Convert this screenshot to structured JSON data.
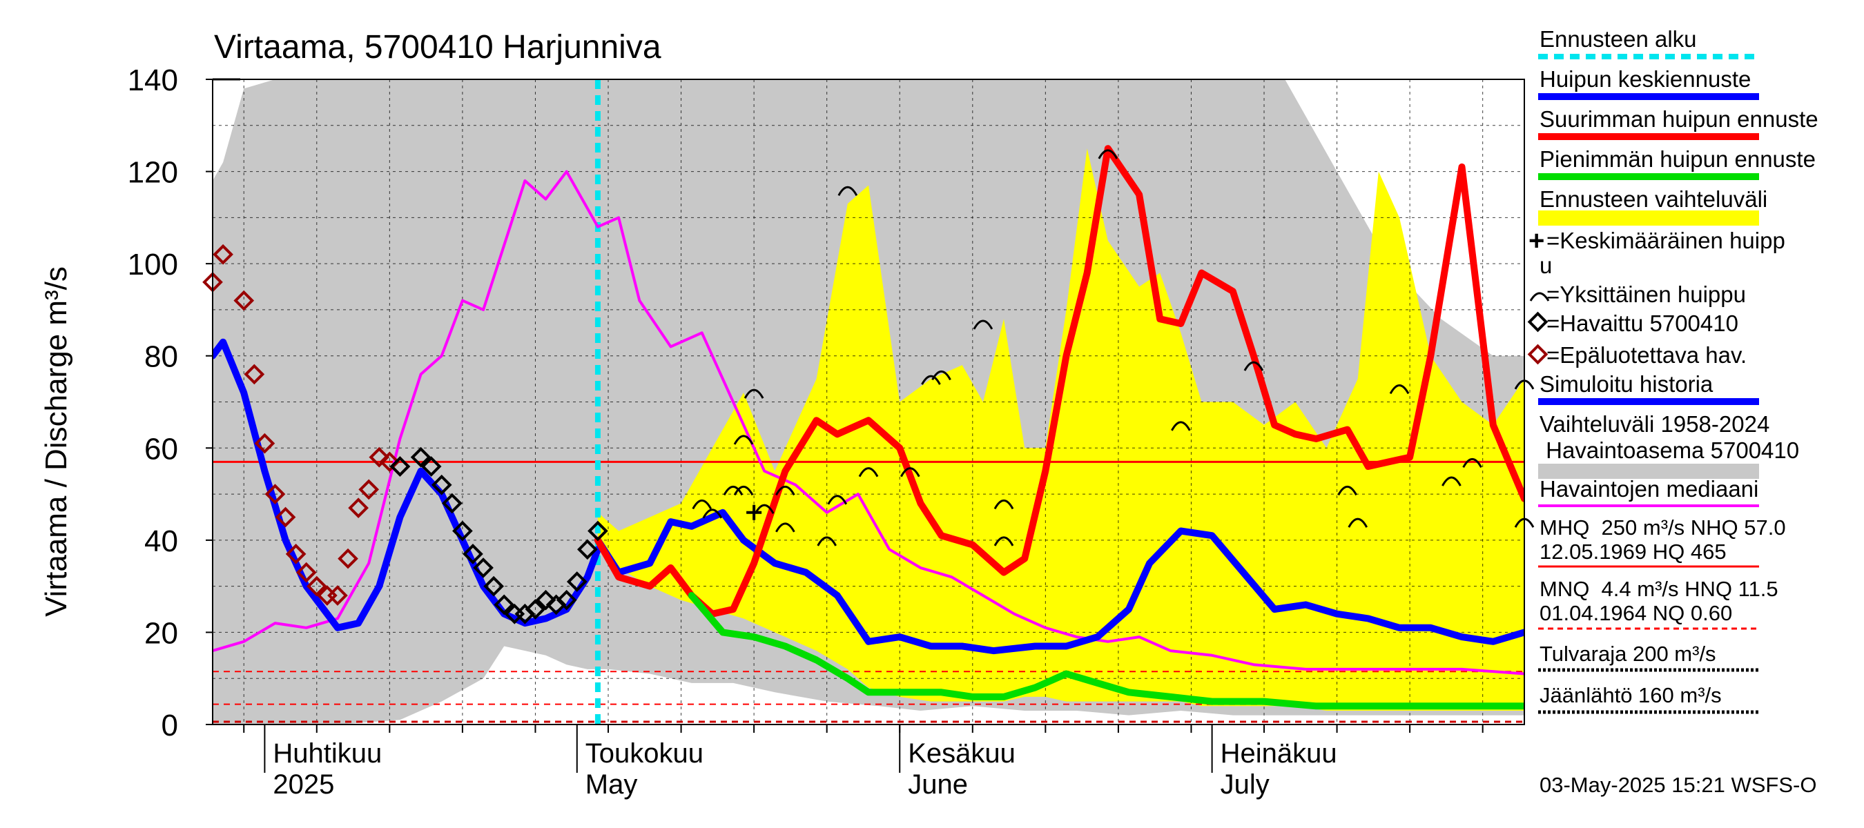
{
  "chart_data": {
    "type": "line",
    "title": "Virtaama, 5700410 Harjunniva",
    "ylabel": "Virtaama / Discharge   m³/s",
    "ylim": [
      0,
      140
    ],
    "yticks": [
      "0",
      "20",
      "40",
      "60",
      "80",
      "100",
      "120",
      "140"
    ],
    "xlim": [
      "2025-03-27",
      "2025-07-31"
    ],
    "grid": true,
    "x_month_labels": [
      {
        "fi": "Huhtikuu",
        "en": "2025",
        "date": "2025-04-01"
      },
      {
        "fi": "Toukokuu",
        "en": "May",
        "date": "2025-05-01"
      },
      {
        "fi": "Kesäkuu",
        "en": "June",
        "date": "2025-06-01"
      },
      {
        "fi": "Heinäkuu",
        "en": "July",
        "date": "2025-07-01"
      }
    ],
    "forecast_start": "2025-05-03",
    "reference_lines": {
      "hnq": 57.0,
      "mnq": 4.4,
      "hnq_low": 11.5,
      "nq": 0.6
    },
    "series": [
      {
        "name": "Vaihteluväli 1958-2024",
        "kind": "band",
        "color": "#c8c8c8",
        "x": [
          "2025-03-27",
          "2025-03-28",
          "2025-03-30",
          "2025-04-02",
          "2025-04-08",
          "2025-04-14",
          "2025-04-18",
          "2025-04-22",
          "2025-04-24",
          "2025-04-26",
          "2025-04-28",
          "2025-04-30",
          "2025-05-02",
          "2025-05-04",
          "2025-05-08",
          "2025-05-12",
          "2025-05-16",
          "2025-05-20",
          "2025-05-25",
          "2025-05-30",
          "2025-06-03",
          "2025-06-08",
          "2025-06-13",
          "2025-06-18",
          "2025-06-23",
          "2025-06-28",
          "2025-07-03",
          "2025-07-08",
          "2025-07-13",
          "2025-07-18",
          "2025-07-23",
          "2025-07-28",
          "2025-07-31"
        ],
        "low": [
          0,
          0,
          0,
          0,
          0,
          1,
          5,
          10,
          17,
          16,
          15,
          13,
          12,
          12,
          11,
          9,
          9,
          7,
          5,
          4,
          3,
          4,
          3,
          3,
          2,
          3,
          2,
          2,
          2,
          2,
          2,
          2,
          2
        ],
        "high": [
          118,
          122,
          138,
          140,
          140,
          140,
          140,
          140,
          140,
          140,
          140,
          140,
          140,
          140,
          140,
          140,
          140,
          140,
          140,
          140,
          140,
          140,
          140,
          140,
          140,
          140,
          140,
          140,
          120,
          100,
          88,
          80,
          80
        ]
      },
      {
        "name": "Ennusteen vaihteluväli",
        "kind": "band",
        "color": "#ffff00",
        "x": [
          "2025-05-03",
          "2025-05-05",
          "2025-05-08",
          "2025-05-11",
          "2025-05-14",
          "2025-05-17",
          "2025-05-20",
          "2025-05-24",
          "2025-05-27",
          "2025-05-29",
          "2025-06-01",
          "2025-06-04",
          "2025-06-07",
          "2025-06-09",
          "2025-06-11",
          "2025-06-13",
          "2025-06-15",
          "2025-06-17",
          "2025-06-19",
          "2025-06-21",
          "2025-06-24",
          "2025-06-26",
          "2025-06-28",
          "2025-06-30",
          "2025-07-03",
          "2025-07-06",
          "2025-07-09",
          "2025-07-12",
          "2025-07-15",
          "2025-07-17",
          "2025-07-19",
          "2025-07-22",
          "2025-07-25",
          "2025-07-28",
          "2025-07-31"
        ],
        "low": [
          38,
          34,
          30,
          27,
          25,
          23,
          20,
          16,
          12,
          8,
          6,
          5,
          5,
          5,
          5,
          6,
          6,
          5,
          5,
          5,
          5,
          5,
          5,
          4,
          4,
          4,
          4,
          3,
          3,
          3,
          3,
          3,
          3,
          3,
          3
        ],
        "high": [
          46,
          42,
          45,
          48,
          60,
          72,
          55,
          75,
          113,
          117,
          70,
          75,
          78,
          70,
          88,
          60,
          60,
          90,
          125,
          105,
          95,
          98,
          85,
          70,
          70,
          65,
          70,
          60,
          75,
          120,
          110,
          80,
          70,
          65,
          75
        ]
      },
      {
        "name": "Simuloitu historia",
        "kind": "line",
        "color": "#0000ff",
        "x": [
          "2025-03-27",
          "2025-03-28",
          "2025-03-30",
          "2025-04-01",
          "2025-04-03",
          "2025-04-05",
          "2025-04-08",
          "2025-04-10",
          "2025-04-12",
          "2025-04-14",
          "2025-04-16",
          "2025-04-18",
          "2025-04-20",
          "2025-04-22",
          "2025-04-24",
          "2025-04-26",
          "2025-04-28",
          "2025-04-30",
          "2025-05-02",
          "2025-05-03"
        ],
        "values": [
          80,
          83,
          72,
          55,
          40,
          30,
          21,
          22,
          30,
          45,
          55,
          50,
          40,
          30,
          24,
          22,
          23,
          25,
          32,
          38
        ]
      },
      {
        "name": "Huipun keskiennuste",
        "kind": "line",
        "color": "#0000ff",
        "x": [
          "2025-05-03",
          "2025-05-05",
          "2025-05-08",
          "2025-05-10",
          "2025-05-12",
          "2025-05-15",
          "2025-05-17",
          "2025-05-20",
          "2025-05-23",
          "2025-05-26",
          "2025-05-29",
          "2025-06-01",
          "2025-06-04",
          "2025-06-07",
          "2025-06-10",
          "2025-06-14",
          "2025-06-17",
          "2025-06-20",
          "2025-06-23",
          "2025-06-25",
          "2025-06-28",
          "2025-07-01",
          "2025-07-04",
          "2025-07-07",
          "2025-07-10",
          "2025-07-13",
          "2025-07-16",
          "2025-07-19",
          "2025-07-22",
          "2025-07-25",
          "2025-07-28",
          "2025-07-31"
        ],
        "values": [
          40,
          33,
          35,
          44,
          43,
          46,
          40,
          35,
          33,
          28,
          18,
          19,
          17,
          17,
          16,
          17,
          17,
          19,
          25,
          35,
          42,
          41,
          33,
          25,
          26,
          24,
          23,
          21,
          21,
          19,
          18,
          20
        ]
      },
      {
        "name": "Suurimman huipun ennuste",
        "kind": "line",
        "color": "#ff0000",
        "x": [
          "2025-05-03",
          "2025-05-05",
          "2025-05-08",
          "2025-05-10",
          "2025-05-12",
          "2025-05-14",
          "2025-05-16",
          "2025-05-18",
          "2025-05-21",
          "2025-05-24",
          "2025-05-26",
          "2025-05-29",
          "2025-06-01",
          "2025-06-03",
          "2025-06-05",
          "2025-06-08",
          "2025-06-11",
          "2025-06-13",
          "2025-06-15",
          "2025-06-17",
          "2025-06-19",
          "2025-06-21",
          "2025-06-24",
          "2025-06-26",
          "2025-06-28",
          "2025-06-30",
          "2025-07-03",
          "2025-07-05",
          "2025-07-07",
          "2025-07-09",
          "2025-07-11",
          "2025-07-14",
          "2025-07-16",
          "2025-07-18",
          "2025-07-20",
          "2025-07-22",
          "2025-07-25",
          "2025-07-28",
          "2025-07-31"
        ],
        "values": [
          40,
          32,
          30,
          34,
          28,
          24,
          25,
          35,
          55,
          66,
          63,
          66,
          60,
          48,
          41,
          39,
          33,
          36,
          55,
          80,
          98,
          125,
          115,
          88,
          87,
          98,
          94,
          80,
          65,
          63,
          62,
          64,
          56,
          57,
          58,
          80,
          121,
          65,
          49
        ]
      },
      {
        "name": "Pienimmän huipun ennuste",
        "kind": "line",
        "color": "#00dd00",
        "x": [
          "2025-05-12",
          "2025-05-15",
          "2025-05-18",
          "2025-05-21",
          "2025-05-24",
          "2025-05-27",
          "2025-05-29",
          "2025-06-01",
          "2025-06-05",
          "2025-06-08",
          "2025-06-11",
          "2025-06-14",
          "2025-06-17",
          "2025-06-20",
          "2025-06-23",
          "2025-06-27",
          "2025-07-01",
          "2025-07-06",
          "2025-07-11",
          "2025-07-16",
          "2025-07-21",
          "2025-07-26",
          "2025-07-31"
        ],
        "values": [
          28,
          20,
          19,
          17,
          14,
          10,
          7,
          7,
          7,
          6,
          6,
          8,
          11,
          9,
          7,
          6,
          5,
          5,
          4,
          4,
          4,
          4,
          4
        ]
      },
      {
        "name": "Havaintojen mediaani",
        "kind": "line",
        "color": "#ff00ff",
        "x": [
          "2025-03-27",
          "2025-03-30",
          "2025-04-02",
          "2025-04-05",
          "2025-04-08",
          "2025-04-11",
          "2025-04-14",
          "2025-04-16",
          "2025-04-18",
          "2025-04-20",
          "2025-04-22",
          "2025-04-24",
          "2025-04-26",
          "2025-04-28",
          "2025-04-30",
          "2025-05-02",
          "2025-05-03",
          "2025-05-05",
          "2025-05-07",
          "2025-05-10",
          "2025-05-13",
          "2025-05-16",
          "2025-05-19",
          "2025-05-22",
          "2025-05-25",
          "2025-05-28",
          "2025-05-31",
          "2025-06-03",
          "2025-06-06",
          "2025-06-09",
          "2025-06-12",
          "2025-06-15",
          "2025-06-18",
          "2025-06-21",
          "2025-06-24",
          "2025-06-27",
          "2025-07-01",
          "2025-07-05",
          "2025-07-10",
          "2025-07-15",
          "2025-07-20",
          "2025-07-25",
          "2025-07-31"
        ],
        "values": [
          16,
          18,
          22,
          21,
          23,
          35,
          62,
          76,
          80,
          92,
          90,
          104,
          118,
          114,
          120,
          112,
          108,
          110,
          92,
          82,
          85,
          70,
          55,
          52,
          46,
          50,
          38,
          34,
          32,
          28,
          24,
          21,
          19,
          18,
          19,
          16,
          15,
          13,
          12,
          12,
          12,
          12,
          11
        ]
      }
    ],
    "observations": {
      "name": "Havaittu 5700410",
      "x": [
        "2025-04-14",
        "2025-04-16",
        "2025-04-17",
        "2025-04-18",
        "2025-04-19",
        "2025-04-20",
        "2025-04-21",
        "2025-04-22",
        "2025-04-23",
        "2025-04-24",
        "2025-04-25",
        "2025-04-26",
        "2025-04-27",
        "2025-04-28",
        "2025-04-29",
        "2025-04-30",
        "2025-05-01",
        "2025-05-02",
        "2025-05-03"
      ],
      "values": [
        56,
        58,
        56,
        52,
        48,
        42,
        37,
        34,
        30,
        26,
        24,
        24,
        25,
        27,
        26,
        27,
        31,
        38,
        42
      ]
    },
    "unreliable_observations": {
      "name": "Epäluotettava hav.",
      "x": [
        "2025-03-27",
        "2025-03-28",
        "2025-03-30",
        "2025-03-31",
        "2025-04-01",
        "2025-04-02",
        "2025-04-03",
        "2025-04-04",
        "2025-04-05",
        "2025-04-06",
        "2025-04-07",
        "2025-04-08",
        "2025-04-09",
        "2025-04-10",
        "2025-04-11",
        "2025-04-12",
        "2025-04-13",
        "2025-04-14"
      ],
      "values": [
        96,
        102,
        92,
        76,
        61,
        50,
        45,
        37,
        33,
        30,
        28,
        28,
        36,
        47,
        51,
        58,
        57,
        56
      ]
    },
    "individual_peaks": [
      {
        "x": "2025-05-13",
        "y": 48
      },
      {
        "x": "2025-05-14",
        "y": 46
      },
      {
        "x": "2025-05-16",
        "y": 51
      },
      {
        "x": "2025-05-17",
        "y": 51
      },
      {
        "x": "2025-05-17",
        "y": 62
      },
      {
        "x": "2025-05-18",
        "y": 72
      },
      {
        "x": "2025-05-19",
        "y": 47
      },
      {
        "x": "2025-05-21",
        "y": 43
      },
      {
        "x": "2025-05-21",
        "y": 51
      },
      {
        "x": "2025-05-25",
        "y": 40
      },
      {
        "x": "2025-05-26",
        "y": 49
      },
      {
        "x": "2025-05-27",
        "y": 116
      },
      {
        "x": "2025-05-29",
        "y": 55
      },
      {
        "x": "2025-06-02",
        "y": 55
      },
      {
        "x": "2025-06-04",
        "y": 75
      },
      {
        "x": "2025-06-05",
        "y": 76
      },
      {
        "x": "2025-06-09",
        "y": 87
      },
      {
        "x": "2025-06-11",
        "y": 48
      },
      {
        "x": "2025-06-11",
        "y": 40
      },
      {
        "x": "2025-06-21",
        "y": 124
      },
      {
        "x": "2025-06-28",
        "y": 65
      },
      {
        "x": "2025-07-05",
        "y": 78
      },
      {
        "x": "2025-07-14",
        "y": 51
      },
      {
        "x": "2025-07-15",
        "y": 44
      },
      {
        "x": "2025-07-19",
        "y": 73
      },
      {
        "x": "2025-07-24",
        "y": 53
      },
      {
        "x": "2025-07-26",
        "y": 57
      },
      {
        "x": "2025-07-31",
        "y": 74
      },
      {
        "x": "2025-07-31",
        "y": 44
      }
    ],
    "mean_peak": {
      "x": "2025-05-18",
      "y": 46
    }
  },
  "legend": {
    "forecast_start": "Ennusteen alku",
    "mean_forecast": "Huipun keskiennuste",
    "max_forecast": "Suurimman huipun ennuste",
    "min_forecast": "Pienimmän huipun ennuste",
    "forecast_range": "Ennusteen vaihteluväli",
    "mean_peak_1": "=Keskimääräinen huipp",
    "mean_peak_2": "u",
    "single_peak": "=Yksittäinen huippu",
    "observed": "=Havaittu 5700410",
    "unreliable": "=Epäluotettava hav.",
    "simulated": "Simuloitu historia",
    "hist_range_1": "Vaihteluväli 1958-2024",
    "hist_range_2": " Havaintoasema 5700410",
    "median": "Havaintojen mediaani",
    "mhq_1": "MHQ  250 m³/s NHQ 57.0",
    "mhq_2": "12.05.1969 HQ  465",
    "mnq_1": "MNQ  4.4 m³/s HNQ 11.5",
    "mnq_2": "01.04.1964 NQ 0.60",
    "flood": "Tulvaraja 200 m³/s",
    "ice": "Jäänlähtö 160 m³/s"
  },
  "colors": {
    "hist_band": "#c8c8c8",
    "forecast_band": "#ffff00",
    "blue": "#0000ff",
    "red": "#ff0000",
    "green": "#00dd00",
    "magenta": "#ff00ff",
    "cyan": "#00e5ee",
    "dark_red": "#990000"
  },
  "footer": "03-May-2025 15:21 WSFS-O"
}
